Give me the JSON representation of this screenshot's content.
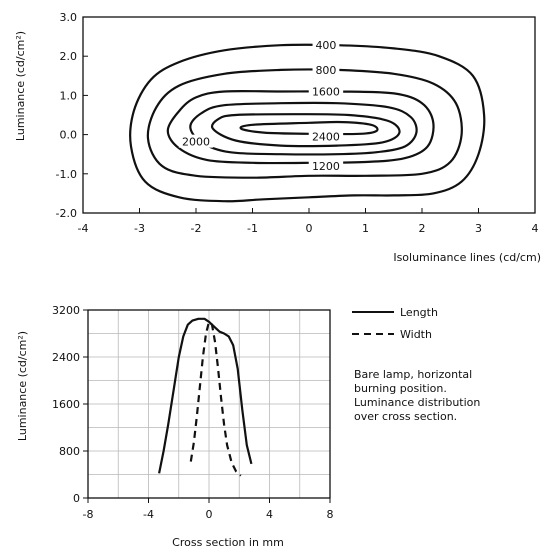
{
  "chart_data": [
    {
      "type": "contour",
      "xlabel": "Isoluminance lines (cd/cm)",
      "ylabel": "Luminance (cd/cm²)",
      "xlim": [
        -4,
        4
      ],
      "ylim": [
        -2,
        3
      ],
      "x_ticks": [
        "-4",
        "-3",
        "-2",
        "-1",
        "0",
        "1",
        "2",
        "3",
        "4"
      ],
      "y_ticks": [
        "-2.0",
        "-1.0",
        "0.0",
        "1.0",
        "2.0",
        "3.0"
      ],
      "grid": false,
      "contours": [
        {
          "level": "400",
          "x": [
            -1.5,
            -0.5,
            0.5,
            1.5,
            2.3,
            2.9,
            3.1,
            3.0,
            2.7,
            2.2,
            1.5,
            0.8,
            0.0,
            -0.8,
            -1.5,
            -2.3,
            -2.9,
            -3.15,
            -3.1,
            -2.8,
            -2.3
          ],
          "y": [
            2.15,
            2.28,
            2.28,
            2.2,
            2.0,
            1.5,
            0.5,
            -0.5,
            -1.2,
            -1.5,
            -1.55,
            -1.55,
            -1.6,
            -1.65,
            -1.7,
            -1.6,
            -1.2,
            -0.3,
            0.6,
            1.4,
            1.85
          ]
        },
        {
          "level": "800",
          "x": [
            -1.5,
            -0.5,
            0.5,
            1.5,
            2.2,
            2.6,
            2.7,
            2.5,
            2.0,
            1.0,
            0.0,
            -1.0,
            -2.0,
            -2.6,
            -2.85,
            -2.7,
            -2.3
          ],
          "y": [
            1.55,
            1.65,
            1.65,
            1.55,
            1.3,
            0.8,
            0.0,
            -0.7,
            -1.0,
            -1.05,
            -1.05,
            -1.1,
            -1.05,
            -0.8,
            -0.1,
            0.7,
            1.25
          ]
        },
        {
          "level": "1600",
          "x": [
            -1.5,
            -0.5,
            0.5,
            1.5,
            2.0,
            2.2,
            2.1,
            1.7,
            1.0,
            0.0,
            -1.0,
            -1.8,
            -2.3,
            -2.5,
            -2.3,
            -2.0
          ],
          "y": [
            1.1,
            1.1,
            1.1,
            1.05,
            0.8,
            0.3,
            -0.3,
            -0.6,
            -0.7,
            -0.72,
            -0.72,
            -0.65,
            -0.35,
            0.1,
            0.6,
            0.95
          ]
        },
        {
          "level": "1200",
          "x": [
            -1.5,
            -0.5,
            0.5,
            1.4,
            1.8,
            1.9,
            1.7,
            1.2,
            0.5,
            -0.5,
            -1.4,
            -1.9,
            -2.1,
            -1.9
          ],
          "y": [
            0.75,
            0.8,
            0.8,
            0.7,
            0.45,
            0.05,
            -0.3,
            -0.45,
            -0.5,
            -0.5,
            -0.45,
            -0.2,
            0.2,
            0.55
          ]
        },
        {
          "level": "2000",
          "x": [
            -1.3,
            -0.3,
            0.7,
            1.4,
            1.6,
            1.3,
            0.5,
            -0.5,
            -1.3,
            -1.7,
            -1.6
          ],
          "y": [
            0.5,
            0.52,
            0.5,
            0.35,
            0.05,
            -0.2,
            -0.28,
            -0.28,
            -0.15,
            0.15,
            0.4
          ]
        },
        {
          "level": "2400",
          "x": [
            -1.0,
            0.0,
            0.6,
            1.1,
            1.2,
            0.9,
            0.0,
            -0.8,
            -1.2
          ],
          "y": [
            0.25,
            0.3,
            0.32,
            0.25,
            0.1,
            0.02,
            0.02,
            0.05,
            0.15
          ]
        }
      ]
    },
    {
      "type": "line",
      "xlabel": "Cross section in mm",
      "ylabel": "Luminance (cd/cm²)",
      "xlim": [
        -8,
        8
      ],
      "ylim": [
        0,
        3200
      ],
      "x_ticks": [
        "-8",
        "-4",
        "0",
        "4",
        "8"
      ],
      "y_ticks": [
        "0",
        "800",
        "1600",
        "2400",
        "3200"
      ],
      "grid": true,
      "legend_position": "right",
      "series": [
        {
          "name": "Length",
          "style": "solid",
          "x": [
            -3.3,
            -3.0,
            -2.7,
            -2.3,
            -2.0,
            -1.7,
            -1.4,
            -1.1,
            -0.7,
            -0.3,
            0.0,
            0.4,
            0.7,
            1.0,
            1.3,
            1.6,
            1.9,
            2.2,
            2.5,
            2.8
          ],
          "y": [
            420,
            800,
            1250,
            1900,
            2400,
            2750,
            2950,
            3020,
            3050,
            3050,
            3000,
            2900,
            2830,
            2800,
            2750,
            2600,
            2200,
            1500,
            900,
            580
          ]
        },
        {
          "name": "Width",
          "style": "dashed",
          "x": [
            -1.2,
            -1.0,
            -0.8,
            -0.6,
            -0.4,
            -0.2,
            0.0,
            0.2,
            0.4,
            0.6,
            0.8,
            1.0,
            1.2,
            1.5,
            1.8,
            2.1
          ],
          "y": [
            620,
            950,
            1400,
            1900,
            2400,
            2800,
            3000,
            2950,
            2650,
            2200,
            1700,
            1250,
            900,
            600,
            450,
            380
          ]
        }
      ],
      "annotation": "Bare lamp, horizontal burning position. Luminance distribution over cross section."
    }
  ]
}
